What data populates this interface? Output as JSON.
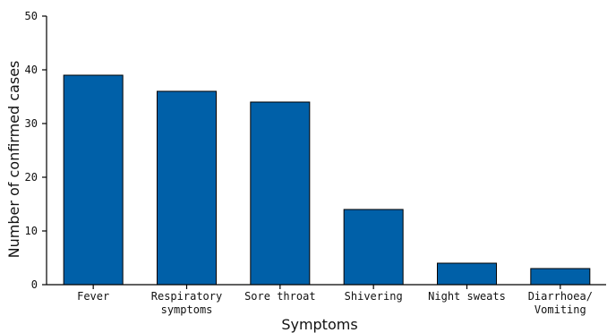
{
  "chart_data": {
    "type": "bar",
    "title": "",
    "xlabel": "Symptoms",
    "ylabel": "Number of confirmed cases",
    "categories": [
      [
        "Fever"
      ],
      [
        "Respiratory",
        "symptoms"
      ],
      [
        "Sore throat"
      ],
      [
        "Shivering"
      ],
      [
        "Night sweats"
      ],
      [
        "Diarrhoea/",
        "Vomiting"
      ]
    ],
    "values": [
      39,
      36,
      34,
      14,
      4,
      3
    ],
    "ylim": [
      0,
      50
    ],
    "yticks": [
      "0",
      "10",
      "20",
      "30",
      "40",
      "50"
    ],
    "grid": false,
    "legend": "none",
    "bar_color": "#0060a8"
  }
}
